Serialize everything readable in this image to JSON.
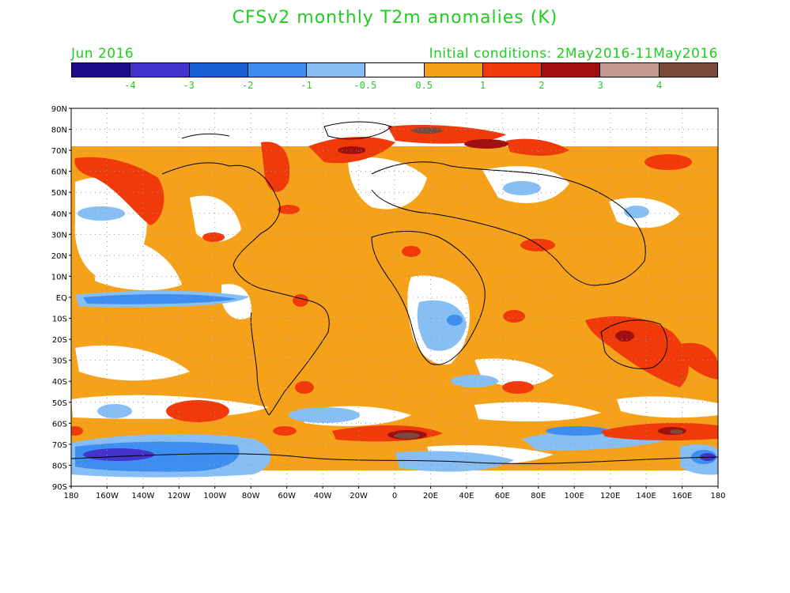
{
  "title": "CFSv2 monthly T2m anomalies (K)",
  "valid": "Jun 2016",
  "initial": "Initial conditions: 2May2016-11May2016",
  "colors": {
    "text": "#22cc22",
    "scale": [
      "#1b0c8c",
      "#4433cc",
      "#1a5fd6",
      "#3d8ef0",
      "#87bff5",
      "#ffffff",
      "#f5a21a",
      "#f03a0a",
      "#a01010",
      "#c59a90",
      "#7a4a3c"
    ]
  },
  "colorbar_labels": [
    "-4",
    "-3",
    "-2",
    "-1",
    "-0.5",
    "0.5",
    "1",
    "2",
    "3",
    "4"
  ],
  "lat_labels": [
    "90N",
    "80N",
    "70N",
    "60N",
    "50N",
    "40N",
    "30N",
    "20N",
    "10N",
    "EQ",
    "10S",
    "20S",
    "30S",
    "40S",
    "50S",
    "60S",
    "70S",
    "80S",
    "90S"
  ],
  "lon_labels": [
    "180",
    "160W",
    "140W",
    "120W",
    "100W",
    "80W",
    "60W",
    "40W",
    "20W",
    "0",
    "20E",
    "40E",
    "60E",
    "80E",
    "100E",
    "120E",
    "140E",
    "160E",
    "180"
  ]
}
